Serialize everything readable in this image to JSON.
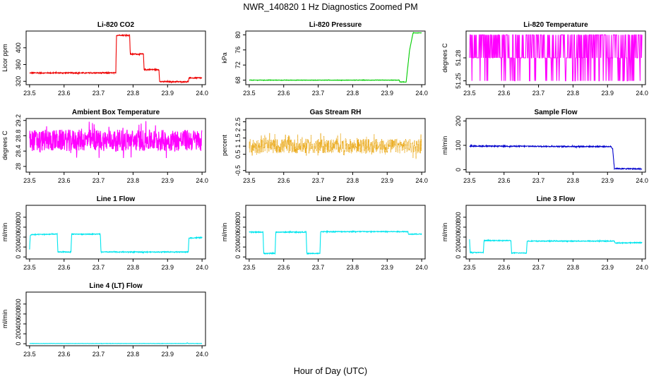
{
  "figure": {
    "title": "NWR_140820  1 Hz Diagnostics Zoomed PM",
    "xlabel": "Hour of Day (UTC)"
  },
  "chart_data": [
    {
      "type": "line",
      "title": "Li-820 CO2",
      "ylabel": "Licor ppm",
      "color": "#ee0000",
      "ylim": [
        312,
        440
      ],
      "yticks": [
        320,
        360,
        400
      ],
      "xlim": [
        23.49,
        24.01
      ],
      "xticks": [
        23.5,
        23.6,
        23.7,
        23.8,
        23.9,
        24.0
      ],
      "noise": 1.2,
      "series": [
        {
          "points": [
            [
              23.5,
              340
            ],
            [
              23.75,
              340
            ],
            [
              23.752,
              430
            ],
            [
              23.79,
              430
            ],
            [
              23.792,
              385
            ],
            [
              23.83,
              385
            ],
            [
              23.832,
              348
            ],
            [
              23.875,
              348
            ],
            [
              23.877,
              319
            ],
            [
              23.96,
              319
            ],
            [
              23.962,
              328
            ],
            [
              24.0,
              328
            ]
          ]
        }
      ]
    },
    {
      "type": "line",
      "title": "Li-820 Pressure",
      "ylabel": "kPa",
      "color": "#00cc00",
      "ylim": [
        66.8,
        81
      ],
      "yticks": [
        68,
        72,
        76,
        80
      ],
      "xlim": [
        23.49,
        24.01
      ],
      "xticks": [
        23.5,
        23.6,
        23.7,
        23.8,
        23.9,
        24.0
      ],
      "noise": 0.05,
      "series": [
        {
          "points": [
            [
              23.5,
              68.0
            ],
            [
              23.935,
              68.0
            ],
            [
              23.937,
              67.5
            ],
            [
              23.955,
              67.5
            ],
            [
              23.965,
              76
            ],
            [
              23.975,
              80.5
            ],
            [
              24.0,
              80.5
            ]
          ]
        }
      ]
    },
    {
      "type": "line",
      "title": "Li-820 Temperature",
      "ylabel": "degrees C",
      "color": "#ff00ff",
      "ylim": [
        51.245,
        51.315
      ],
      "yticks": [
        51.25,
        51.28
      ],
      "xlim": [
        23.49,
        24.01
      ],
      "xticks": [
        23.5,
        23.6,
        23.7,
        23.8,
        23.9,
        24.0
      ],
      "levels": [
        51.25,
        51.28,
        51.31
      ],
      "pattern": "levels",
      "series": [
        {
          "points": [
            [
              23.5,
              51.28
            ],
            [
              24.0,
              51.28
            ]
          ]
        }
      ]
    },
    {
      "type": "line",
      "title": "Ambient Box Temperature",
      "ylabel": "degrees C",
      "color": "#ff00ff",
      "ylim": [
        27.85,
        29.25
      ],
      "yticks": [
        28.0,
        28.4,
        28.8,
        29.2
      ],
      "xlim": [
        23.49,
        24.01
      ],
      "xticks": [
        23.5,
        23.6,
        23.7,
        23.8,
        23.9,
        24.0
      ],
      "noise": 0.28,
      "series": [
        {
          "points": [
            [
              23.5,
              28.68
            ],
            [
              24.0,
              28.68
            ]
          ]
        }
      ]
    },
    {
      "type": "line",
      "title": "Gas Stream RH",
      "ylabel": "percent",
      "color": "#e8a000",
      "ylim": [
        -0.6,
        2.7
      ],
      "yticks": [
        -0.5,
        0.5,
        1.0,
        1.5,
        2.0,
        2.5
      ],
      "xlim": [
        23.49,
        24.01
      ],
      "xticks": [
        23.5,
        23.6,
        23.7,
        23.8,
        23.9,
        24.0
      ],
      "noise": 0.45,
      "dotted": true,
      "series": [
        {
          "points": [
            [
              23.5,
              1.0
            ],
            [
              24.0,
              1.0
            ]
          ]
        }
      ]
    },
    {
      "type": "line",
      "title": "Sample Flow",
      "ylabel": "ml/min",
      "color": "#0000cc",
      "ylim": [
        -10,
        210
      ],
      "yticks": [
        0,
        100,
        200
      ],
      "xlim": [
        23.49,
        24.01
      ],
      "xticks": [
        23.5,
        23.6,
        23.7,
        23.8,
        23.9,
        24.0
      ],
      "noise": 2,
      "series": [
        {
          "points": [
            [
              23.5,
              97
            ],
            [
              23.91,
              95
            ],
            [
              23.915,
              85
            ],
            [
              23.92,
              5
            ],
            [
              24.0,
              3
            ]
          ]
        }
      ]
    },
    {
      "type": "line",
      "title": "Line 1 Flow",
      "ylabel": "ml/min",
      "color": "#00e5ee",
      "ylim": [
        -40,
        1040
      ],
      "yticks": [
        0,
        200,
        400,
        600,
        800
      ],
      "xlim": [
        23.49,
        24.01
      ],
      "xticks": [
        23.5,
        23.6,
        23.7,
        23.8,
        23.9,
        24.0
      ],
      "noise": 8,
      "series": [
        {
          "points": [
            [
              23.5,
              150
            ],
            [
              23.502,
              430
            ],
            [
              23.505,
              450
            ],
            [
              23.58,
              460
            ],
            [
              23.582,
              100
            ],
            [
              23.62,
              100
            ],
            [
              23.622,
              460
            ],
            [
              23.705,
              460
            ],
            [
              23.707,
              100
            ],
            [
              23.96,
              100
            ],
            [
              23.962,
              380
            ],
            [
              24.0,
              390
            ]
          ]
        }
      ]
    },
    {
      "type": "line",
      "title": "Line 2 Flow",
      "ylabel": "ml/min",
      "color": "#00e5ee",
      "ylim": [
        -40,
        1040
      ],
      "yticks": [
        0,
        200,
        400,
        600,
        800
      ],
      "xlim": [
        23.49,
        24.01
      ],
      "xticks": [
        23.5,
        23.6,
        23.7,
        23.8,
        23.9,
        24.0
      ],
      "noise": 8,
      "series": [
        {
          "points": [
            [
              23.5,
              500
            ],
            [
              23.54,
              500
            ],
            [
              23.542,
              70
            ],
            [
              23.575,
              70
            ],
            [
              23.577,
              500
            ],
            [
              23.665,
              500
            ],
            [
              23.667,
              70
            ],
            [
              23.705,
              70
            ],
            [
              23.707,
              510
            ],
            [
              23.96,
              510
            ],
            [
              23.962,
              460
            ],
            [
              24.0,
              460
            ]
          ]
        }
      ]
    },
    {
      "type": "line",
      "title": "Line 3 Flow",
      "ylabel": "ml/min",
      "color": "#00e5ee",
      "ylim": [
        -40,
        1040
      ],
      "yticks": [
        0,
        200,
        400,
        600,
        800
      ],
      "xlim": [
        23.49,
        24.01
      ],
      "xticks": [
        23.5,
        23.6,
        23.7,
        23.8,
        23.9,
        24.0
      ],
      "noise": 8,
      "series": [
        {
          "points": [
            [
              23.5,
              350
            ],
            [
              23.502,
              90
            ],
            [
              23.54,
              90
            ],
            [
              23.542,
              330
            ],
            [
              23.62,
              330
            ],
            [
              23.622,
              80
            ],
            [
              23.665,
              80
            ],
            [
              23.667,
              320
            ],
            [
              23.92,
              320
            ],
            [
              23.922,
              280
            ],
            [
              24.0,
              290
            ]
          ]
        }
      ]
    },
    {
      "type": "line",
      "title": "Line 4 (LT) Flow",
      "ylabel": "ml/min",
      "color": "#00e5ee",
      "ylim": [
        -40,
        1040
      ],
      "yticks": [
        0,
        200,
        400,
        600,
        800
      ],
      "xlim": [
        23.49,
        24.01
      ],
      "xticks": [
        23.5,
        23.6,
        23.7,
        23.8,
        23.9,
        24.0
      ],
      "noise": 2,
      "series": [
        {
          "points": [
            [
              23.5,
              5
            ],
            [
              23.955,
              5
            ],
            [
              23.957,
              20
            ],
            [
              23.96,
              5
            ],
            [
              24.0,
              5
            ]
          ]
        }
      ]
    }
  ]
}
